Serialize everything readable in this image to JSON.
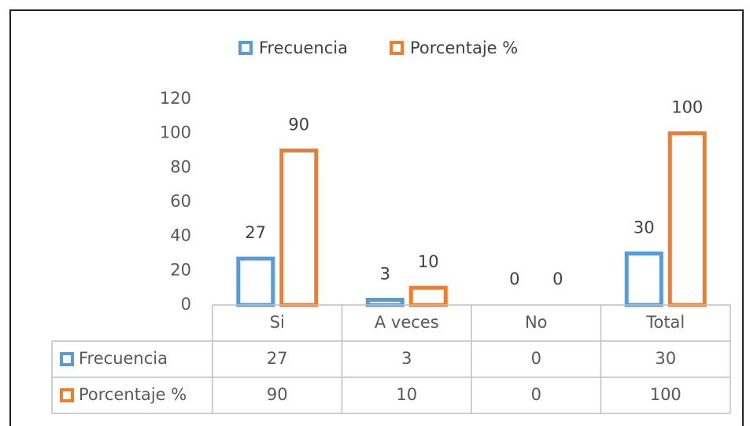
{
  "chart_data": {
    "type": "bar",
    "categories": [
      "Si",
      "A veces",
      "No",
      "Total"
    ],
    "series": [
      {
        "name": "Frecuencia",
        "color": "#5b9bd5",
        "values": [
          27,
          3,
          0,
          30
        ]
      },
      {
        "name": "Porcentaje %",
        "color": "#ed7d31",
        "values": [
          90,
          10,
          0,
          100
        ]
      }
    ],
    "ylim": [
      0,
      120
    ],
    "yticks": [
      0,
      20,
      40,
      60,
      80,
      100,
      120
    ],
    "legend": "top",
    "data_table": true
  }
}
